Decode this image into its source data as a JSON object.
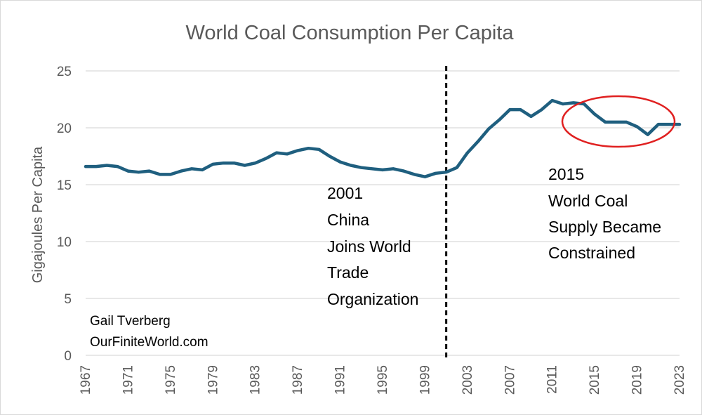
{
  "chart_data": {
    "type": "line",
    "title": "World Coal Consumption Per Capita",
    "ylabel": "Gigajoules Per Capita",
    "xlabel": "",
    "ylim": [
      0,
      25
    ],
    "yticks": [
      0,
      5,
      10,
      15,
      20,
      25
    ],
    "grid": "horizontal",
    "x_tick_labels": [
      "1967",
      "1971",
      "1975",
      "1979",
      "1983",
      "1987",
      "1991",
      "1995",
      "1999",
      "2003",
      "2007",
      "2011",
      "2015",
      "2019",
      "2023"
    ],
    "series": [
      {
        "x": [
          1967,
          1968,
          1969,
          1970,
          1971,
          1972,
          1973,
          1974,
          1975,
          1976,
          1977,
          1978,
          1979,
          1980,
          1981,
          1982,
          1983,
          1984,
          1985,
          1986,
          1987,
          1988,
          1989,
          1990,
          1991,
          1992,
          1993,
          1994,
          1995,
          1996,
          1997,
          1998,
          1999,
          2000,
          2001,
          2002,
          2003,
          2004,
          2005,
          2006,
          2007,
          2008,
          2009,
          2010,
          2011,
          2012,
          2013,
          2014,
          2015,
          2016,
          2017,
          2018,
          2019,
          2020,
          2021,
          2022,
          2023
        ],
        "values": [
          16.6,
          16.6,
          16.7,
          16.6,
          16.2,
          16.1,
          16.2,
          15.9,
          15.9,
          16.2,
          16.4,
          16.3,
          16.8,
          16.9,
          16.9,
          16.7,
          16.9,
          17.3,
          17.8,
          17.7,
          18.0,
          18.2,
          18.1,
          17.5,
          17.0,
          16.7,
          16.5,
          16.4,
          16.3,
          16.4,
          16.2,
          15.9,
          15.7,
          16.0,
          16.1,
          16.5,
          17.8,
          18.8,
          19.9,
          20.7,
          21.6,
          21.6,
          21.0,
          21.6,
          22.4,
          22.1,
          22.2,
          22.1,
          21.2,
          20.5,
          20.5,
          20.5,
          20.1,
          19.4,
          20.3,
          20.3,
          20.3
        ],
        "color": "#1f5f7f"
      }
    ],
    "annotations": [
      {
        "name": "china-wto",
        "year": 2001,
        "lines": [
          "2001",
          "China",
          "Joins World",
          "Trade",
          "Organization"
        ]
      },
      {
        "name": "supply-constrained",
        "year": 2015,
        "lines": [
          "2015",
          "World Coal",
          "Supply Became",
          "Constrained"
        ]
      }
    ],
    "credit": [
      "Gail Tverberg",
      "OurFiniteWorld.com"
    ],
    "colors": {
      "line": "#1f5f7f",
      "ellipse": "#e02020",
      "grid": "#d9d9d9",
      "axis_text": "#595959"
    }
  }
}
